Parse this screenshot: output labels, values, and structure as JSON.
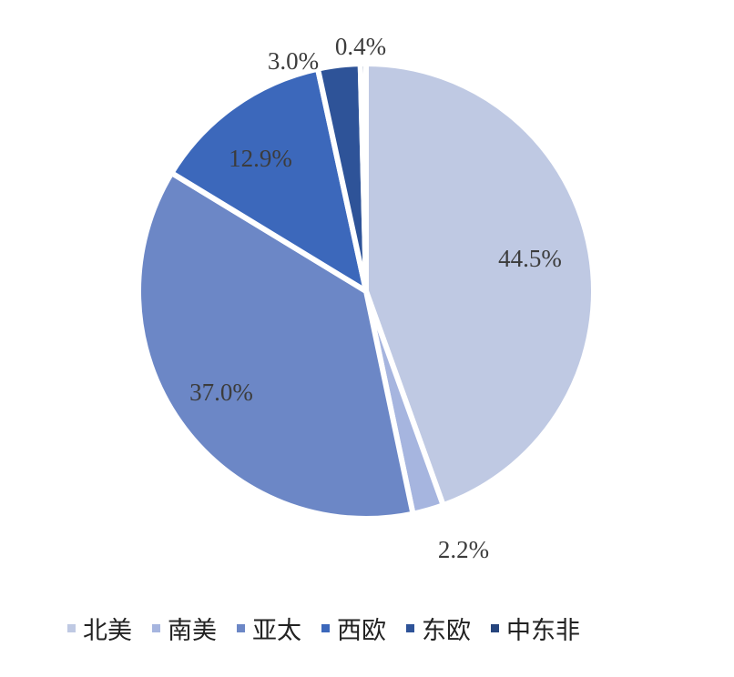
{
  "chart_data": {
    "type": "pie",
    "title": "",
    "series": [
      {
        "name": "北美",
        "value": 44.5,
        "label": "44.5%",
        "color": "#bfc9e3"
      },
      {
        "name": "南美",
        "value": 2.2,
        "label": "2.2%",
        "color": "#a6b5df"
      },
      {
        "name": "亚太",
        "value": 37.0,
        "label": "37.0%",
        "color": "#6c87c6"
      },
      {
        "name": "西欧",
        "value": 12.9,
        "label": "12.9%",
        "color": "#3c68bb"
      },
      {
        "name": "东欧",
        "value": 3.0,
        "label": "3.0%",
        "color": "#2e5398"
      },
      {
        "name": "中东非",
        "value": 0.4,
        "label": "0.4%",
        "color": "#26457d"
      }
    ],
    "legend_position": "bottom"
  }
}
